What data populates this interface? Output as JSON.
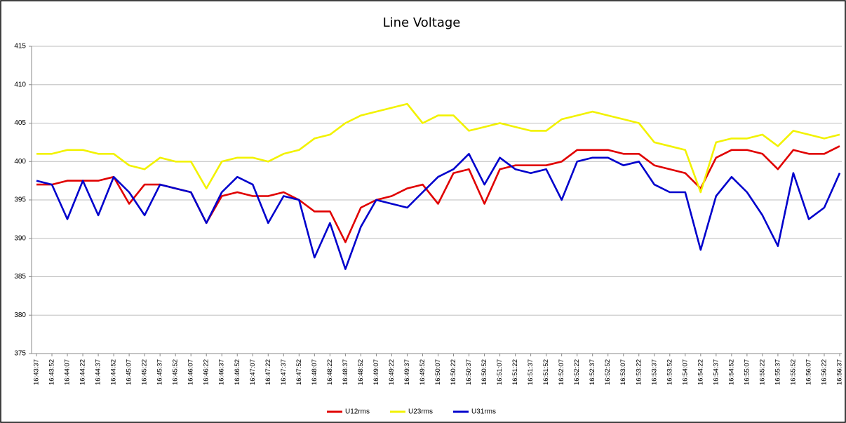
{
  "chart_data": {
    "type": "line",
    "title": "Line Voltage",
    "categories": [
      "16:43:37",
      "16:43:52",
      "16:44:07",
      "16:44:22",
      "16:44:37",
      "16:44:52",
      "16:45:07",
      "16:45:22",
      "16:45:37",
      "16:45:52",
      "16:46:07",
      "16:46:22",
      "16:46:37",
      "16:46:52",
      "16:47:07",
      "16:47:22",
      "16:47:37",
      "16:47:52",
      "16:48:07",
      "16:48:22",
      "16:48:37",
      "16:48:52",
      "16:49:07",
      "16:49:22",
      "16:49:37",
      "16:49:52",
      "16:50:07",
      "16:50:22",
      "16:50:37",
      "16:50:52",
      "16:51:07",
      "16:51:22",
      "16:51:37",
      "16:51:52",
      "16:52:07",
      "16:52:22",
      "16:52:37",
      "16:52:52",
      "16:53:07",
      "16:53:22",
      "16:53:37",
      "16:53:52",
      "16:54:07",
      "16:54:22",
      "16:54:37",
      "16:54:52",
      "16:55:07",
      "16:55:22",
      "16:55:37",
      "16:55:52",
      "16:56:07",
      "16:56:22",
      "16:56:37"
    ],
    "series": [
      {
        "name": "U12rms",
        "color": "#e00000",
        "values": [
          397,
          397,
          397.5,
          397.5,
          397.5,
          398,
          394.5,
          397,
          397,
          396.5,
          396,
          392,
          395.5,
          396,
          395.5,
          395.5,
          396,
          395,
          393.5,
          393.5,
          389.5,
          394,
          395,
          395.5,
          396.5,
          397,
          394.5,
          398.5,
          399,
          394.5,
          399,
          399.5,
          399.5,
          399.5,
          400,
          401.5,
          401.5,
          401.5,
          401,
          401,
          399.5,
          399,
          398.5,
          396.5,
          400.5,
          401.5,
          401.5,
          401,
          399,
          401.5,
          401,
          401,
          402
        ]
      },
      {
        "name": "U23rms",
        "color": "#f2f200",
        "values": [
          401,
          401,
          401.5,
          401.5,
          401,
          401,
          399.5,
          399,
          400.5,
          400,
          400,
          396.5,
          400,
          400.5,
          400.5,
          400,
          401,
          401.5,
          403,
          403.5,
          405,
          406,
          406.5,
          407,
          407.5,
          405,
          406,
          406,
          404,
          404.5,
          405,
          404.5,
          404,
          404,
          405.5,
          406,
          406.5,
          406,
          405.5,
          405,
          402.5,
          402,
          401.5,
          396,
          402.5,
          403,
          403,
          403.5,
          402,
          404,
          403.5,
          403,
          403.5
        ]
      },
      {
        "name": "U31rms",
        "color": "#0000cc",
        "values": [
          397.5,
          397,
          392.5,
          397.5,
          393,
          398,
          396,
          393,
          397,
          396.5,
          396,
          392,
          396,
          398,
          397,
          392,
          395.5,
          395,
          387.5,
          392,
          386,
          391.5,
          395,
          394.5,
          394,
          396,
          398,
          399,
          401,
          397,
          400.5,
          399,
          398.5,
          399,
          395,
          400,
          400.5,
          400.5,
          399.5,
          400,
          397,
          396,
          396,
          388.5,
          395.5,
          398,
          396,
          393,
          389,
          398.5,
          392.5,
          394,
          398.5
        ]
      }
    ],
    "ylim": [
      375,
      415
    ],
    "yticks": [
      375,
      380,
      385,
      390,
      395,
      400,
      405,
      410,
      415
    ],
    "grid": true,
    "legend": "bottom"
  }
}
